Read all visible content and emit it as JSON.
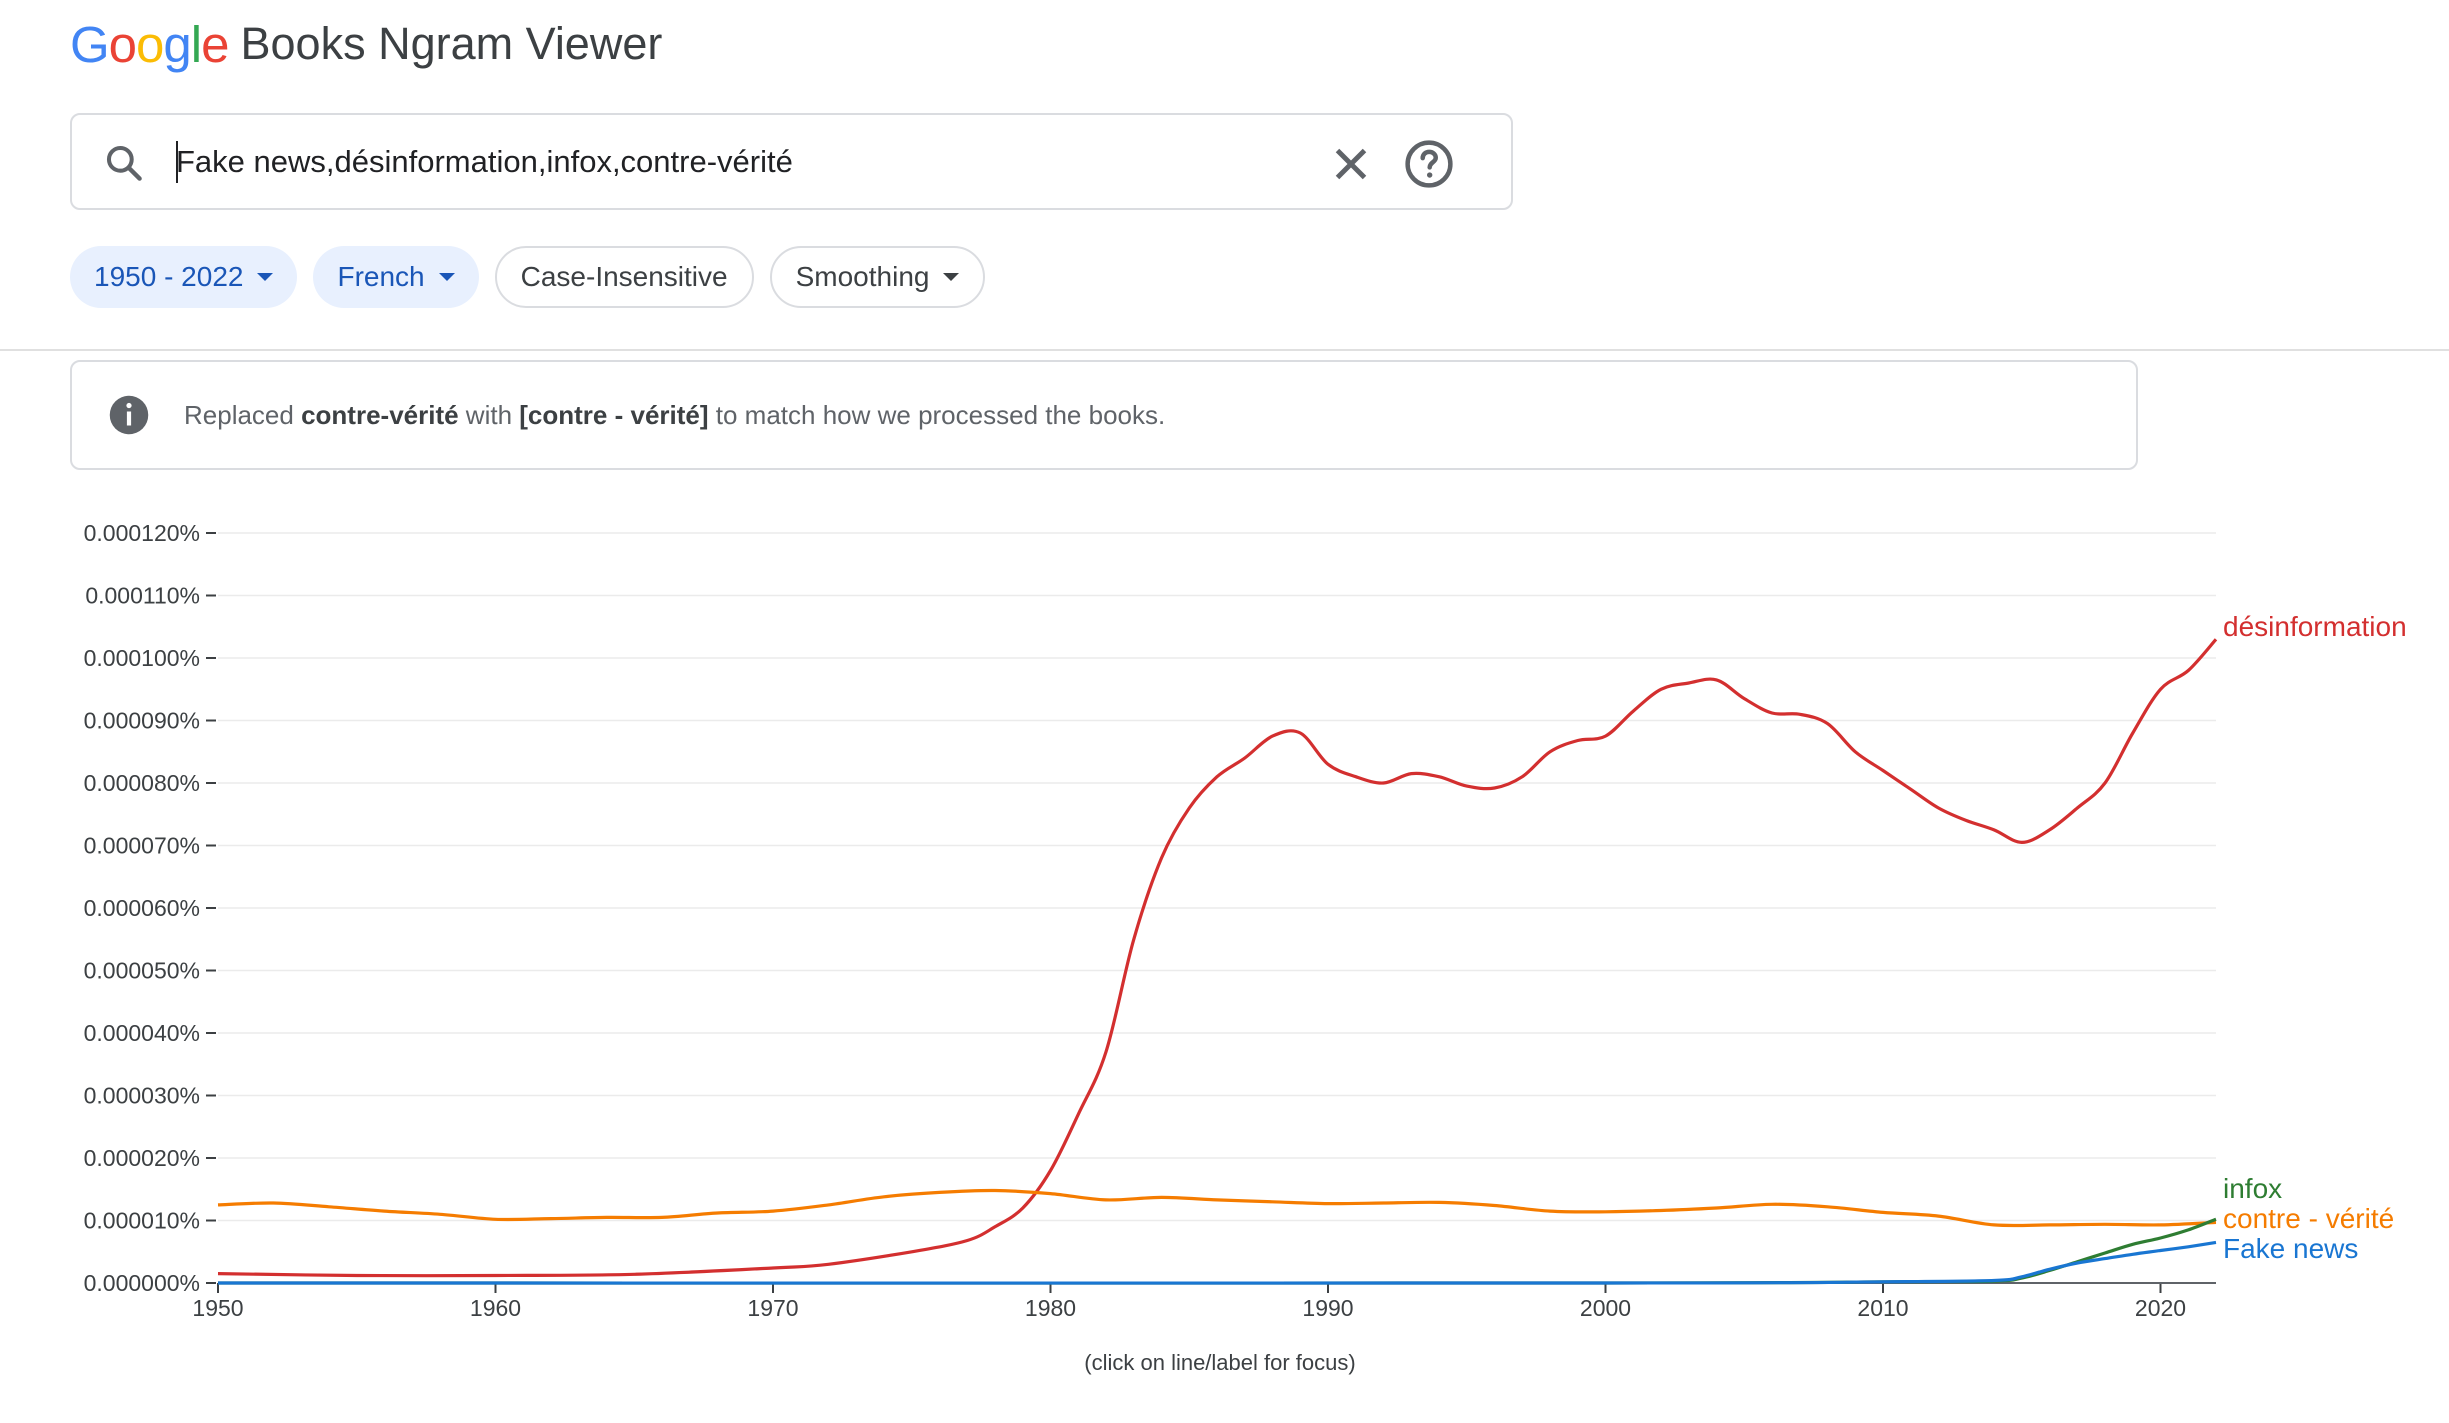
{
  "header": {
    "logo_letters": [
      {
        "char": "G",
        "color": "#4285F4"
      },
      {
        "char": "o",
        "color": "#EA4335"
      },
      {
        "char": "o",
        "color": "#FBBC05"
      },
      {
        "char": "g",
        "color": "#4285F4"
      },
      {
        "char": "l",
        "color": "#34A853"
      },
      {
        "char": "e",
        "color": "#EA4335"
      }
    ],
    "app_title": "Books Ngram Viewer"
  },
  "search": {
    "value": "Fake news,désinformation,infox,contre-vérité",
    "icon": "search-icon",
    "clear_icon": "close-icon",
    "help_icon": "help-icon"
  },
  "filters": {
    "year_range": "1950 - 2022",
    "corpus": "French",
    "case": "Case-Insensitive",
    "smoothing": "Smoothing"
  },
  "notice": {
    "icon": "info-icon",
    "prefix": "Replaced ",
    "original": "contre-vérité",
    "middle": " with ",
    "replacement": "[contre - vérité]",
    "suffix": " to match how we processed the books."
  },
  "chart_data": {
    "type": "line",
    "xlim": [
      1950,
      2022
    ],
    "ylim": [
      0,
      0.00012
    ],
    "y_tick_labels": [
      "0.000000%",
      "0.000010%",
      "0.000020%",
      "0.000030%",
      "0.000040%",
      "0.000050%",
      "0.000060%",
      "0.000070%",
      "0.000080%",
      "0.000090%",
      "0.000100%",
      "0.000110%",
      "0.000120%"
    ],
    "x_ticks": [
      1950,
      1960,
      1970,
      1980,
      1990,
      2000,
      2010,
      2020
    ],
    "grid": true,
    "series": [
      {
        "name": "désinformation",
        "color": "#d32f2f",
        "x": [
          1950,
          1955,
          1960,
          1965,
          1970,
          1972,
          1975,
          1977,
          1978,
          1979,
          1980,
          1981,
          1982,
          1983,
          1984,
          1985,
          1986,
          1987,
          1988,
          1989,
          1990,
          1991,
          1992,
          1993,
          1994,
          1995,
          1996,
          1997,
          1998,
          1999,
          2000,
          2001,
          2002,
          2003,
          2004,
          2005,
          2006,
          2007,
          2008,
          2009,
          2010,
          2011,
          2012,
          2013,
          2014,
          2015,
          2016,
          2017,
          2018,
          2019,
          2020,
          2021,
          2022
        ],
        "y": [
          1.5e-06,
          1.2e-06,
          1.2e-06,
          1.4e-06,
          2.4e-06,
          3e-06,
          5e-06,
          6.8e-06,
          9e-06,
          1.2e-05,
          1.8e-05,
          2.7e-05,
          3.7e-05,
          5.5e-05,
          6.8e-05,
          7.6e-05,
          8.1e-05,
          8.4e-05,
          8.75e-05,
          8.8e-05,
          8.3e-05,
          8.1e-05,
          8e-05,
          8.15e-05,
          8.1e-05,
          7.95e-05,
          7.92e-05,
          8.1e-05,
          8.5e-05,
          8.68e-05,
          8.75e-05,
          9.15e-05,
          9.5e-05,
          9.6e-05,
          9.65e-05,
          9.35e-05,
          9.12e-05,
          9.1e-05,
          8.95e-05,
          8.5e-05,
          8.2e-05,
          7.9e-05,
          7.6e-05,
          7.4e-05,
          7.25e-05,
          7.05e-05,
          7.25e-05,
          7.6e-05,
          8e-05,
          8.8e-05,
          9.5e-05,
          9.8e-05,
          0.000103
        ]
      },
      {
        "name": "contre - vérité",
        "color": "#f57c00",
        "x": [
          1950,
          1952,
          1954,
          1956,
          1958,
          1960,
          1962,
          1964,
          1966,
          1968,
          1970,
          1972,
          1974,
          1976,
          1978,
          1980,
          1982,
          1984,
          1986,
          1988,
          1990,
          1992,
          1994,
          1996,
          1998,
          2000,
          2002,
          2004,
          2006,
          2008,
          2010,
          2012,
          2014,
          2016,
          2018,
          2020,
          2022
        ],
        "y": [
          1.25e-05,
          1.28e-05,
          1.22e-05,
          1.15e-05,
          1.1e-05,
          1.02e-05,
          1.03e-05,
          1.05e-05,
          1.05e-05,
          1.12e-05,
          1.15e-05,
          1.25e-05,
          1.38e-05,
          1.45e-05,
          1.48e-05,
          1.43e-05,
          1.33e-05,
          1.37e-05,
          1.33e-05,
          1.3e-05,
          1.27e-05,
          1.28e-05,
          1.29e-05,
          1.24e-05,
          1.15e-05,
          1.14e-05,
          1.16e-05,
          1.2e-05,
          1.26e-05,
          1.22e-05,
          1.13e-05,
          1.07e-05,
          9.3e-06,
          9.3e-06,
          9.4e-06,
          9.3e-06,
          9.7e-06
        ]
      },
      {
        "name": "infox",
        "color": "#2e7d32",
        "x": [
          1950,
          2000,
          2010,
          2014,
          2015,
          2016,
          2017,
          2018,
          2019,
          2020,
          2021,
          2022
        ],
        "y": [
          0,
          0,
          2e-07,
          3e-07,
          8e-07,
          2e-06,
          3.4e-06,
          4.8e-06,
          6.2e-06,
          7.2e-06,
          8.5e-06,
          1.02e-05
        ]
      },
      {
        "name": "Fake news",
        "color": "#1976d2",
        "x": [
          1950,
          2000,
          2010,
          2014,
          2015,
          2016,
          2017,
          2018,
          2019,
          2020,
          2021,
          2022
        ],
        "y": [
          0,
          0,
          2e-07,
          4e-07,
          1e-06,
          2.2e-06,
          3.2e-06,
          3.9e-06,
          4.6e-06,
          5.2e-06,
          5.8e-06,
          6.5e-06
        ]
      }
    ]
  },
  "footer_note": "(click on line/label for focus)"
}
